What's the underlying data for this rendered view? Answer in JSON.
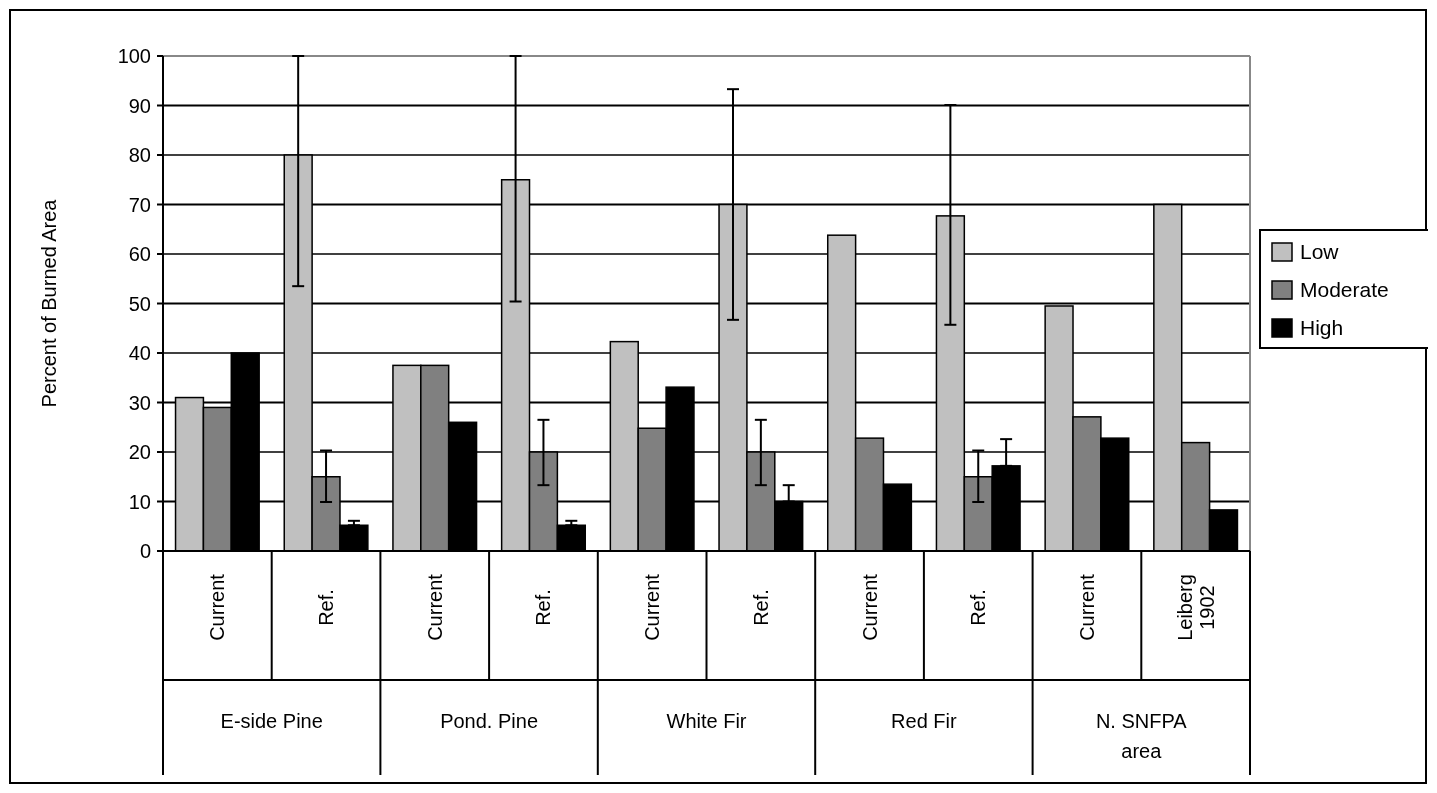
{
  "chart_data": {
    "type": "bar",
    "ylabel": "Percent of Burned Area",
    "categories": [
      "Current",
      "Ref.",
      "Current",
      "Ref.",
      "Current",
      "Ref.",
      "Current",
      "Ref.",
      "Current",
      "Leiberg 1902"
    ],
    "annotations": [
      "E-side Pine",
      "Pond. Pine",
      "White Fir",
      "Red Fir",
      "N. SNFPA area"
    ],
    "series": [
      {
        "name": "Low",
        "color": "#c0c0c0",
        "values": [
          31,
          80,
          37.5,
          75,
          42.3,
          70,
          63.8,
          67.7,
          49.5,
          70
        ],
        "errors": [
          null,
          [
            53.5,
            100
          ],
          null,
          [
            50.4,
            100
          ],
          null,
          [
            46.7,
            93.3
          ],
          null,
          [
            45.7,
            90.1
          ],
          null,
          null
        ]
      },
      {
        "name": "Moderate",
        "color": "#808080",
        "values": [
          29,
          15,
          37.5,
          20,
          24.8,
          20,
          22.8,
          15,
          27.1,
          21.9
        ],
        "errors": [
          null,
          [
            9.9,
            20.3
          ],
          null,
          [
            13.3,
            26.5
          ],
          null,
          [
            13.3,
            26.5
          ],
          null,
          [
            9.9,
            20.3
          ],
          null,
          null
        ]
      },
      {
        "name": "High",
        "color": "#000000",
        "values": [
          40,
          5.2,
          26,
          5.2,
          33.1,
          10,
          13.5,
          17.2,
          22.8,
          8.3
        ],
        "errors": [
          null,
          [
            5.2,
            6.1
          ],
          null,
          [
            5.2,
            6.1
          ],
          null,
          [
            10,
            13.3
          ],
          null,
          [
            17.2,
            22.6
          ],
          null,
          null
        ]
      }
    ],
    "ylim": [
      0,
      100
    ],
    "yticks": [
      0,
      10,
      20,
      30,
      40,
      50,
      60,
      70,
      80,
      90,
      100
    ],
    "grid": "y",
    "legend": "right"
  }
}
